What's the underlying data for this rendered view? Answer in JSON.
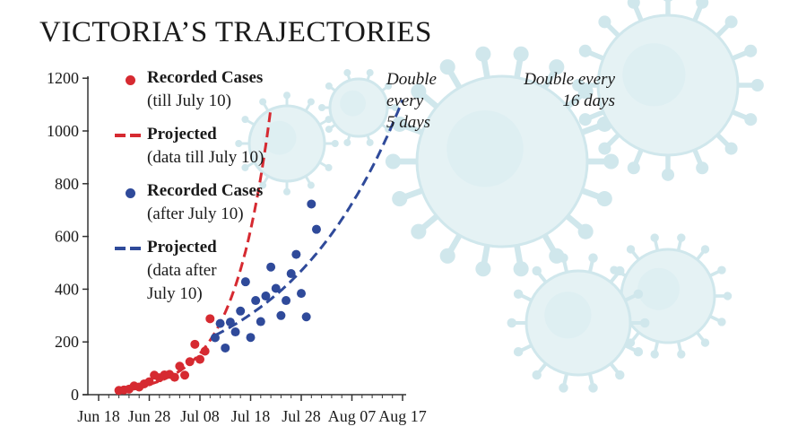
{
  "chart_data": {
    "type": "scatter",
    "title": "VICTORIA’S TRAJECTORIES",
    "xlabel": "",
    "ylabel": "",
    "ylim": [
      0,
      1250
    ],
    "xlim": [
      -1,
      60
    ],
    "x_ticks": [
      {
        "day": 0,
        "label": "Jun 18"
      },
      {
        "day": 10,
        "label": "Jun 28"
      },
      {
        "day": 20,
        "label": "Jul 08"
      },
      {
        "day": 30,
        "label": "Jul 18"
      },
      {
        "day": 40,
        "label": "Jul 28"
      },
      {
        "day": 50,
        "label": "Aug 07"
      },
      {
        "day": 60,
        "label": "Aug 17"
      }
    ],
    "y_ticks": [
      {
        "value": 0,
        "label": "0"
      },
      {
        "value": 200,
        "label": "200"
      },
      {
        "value": 400,
        "label": "400"
      },
      {
        "value": 600,
        "label": "600"
      },
      {
        "value": 800,
        "label": "800"
      },
      {
        "value": 1000,
        "label": "1000"
      },
      {
        "value": 1200,
        "label": "1200"
      }
    ],
    "series": [
      {
        "name": "Recorded Cases (till July 10)",
        "kind": "points",
        "color": "#d62a31",
        "x": [
          4,
          5,
          6,
          7,
          8,
          9,
          10,
          11,
          12,
          13,
          14,
          15,
          16,
          17,
          18,
          19,
          20,
          21,
          22
        ],
        "y": [
          16,
          18,
          21,
          33,
          29,
          41,
          49,
          74,
          64,
          75,
          77,
          66,
          108,
          74,
          125,
          191,
          134,
          165,
          288
        ]
      },
      {
        "name": "Projected (data till July 10)",
        "kind": "dashed-curve",
        "color": "#d62a31",
        "start_day": 4,
        "end_day": 34,
        "start_value": 17,
        "doubling_days": 5
      },
      {
        "name": "Recorded Cases (after July 10)",
        "kind": "points",
        "color": "#2f4a9a",
        "x": [
          23,
          24,
          25,
          26,
          27,
          28,
          29,
          30,
          31,
          32,
          33,
          34,
          35,
          36,
          37,
          38,
          39,
          40,
          41,
          42,
          43
        ],
        "y": [
          216,
          270,
          177,
          275,
          238,
          317,
          428,
          217,
          357,
          277,
          374,
          484,
          403,
          300,
          357,
          459,
          532,
          384,
          295,
          723,
          627
        ]
      },
      {
        "name": "Projected (data after July 10)",
        "kind": "dashed-curve",
        "color": "#2f4a9a",
        "start_day": 23,
        "end_day": 60,
        "start_value": 225,
        "doubling_days": 16
      }
    ],
    "annotations": [
      {
        "text": "Double\nevery\n5 days",
        "near_series": "Projected (data till July 10)"
      },
      {
        "text": "Double every\n16 days",
        "near_series": "Projected (data after July 10)"
      }
    ]
  },
  "legend": [
    {
      "label": "Recorded Cases",
      "note": "(till July 10)",
      "color": "#d62a31",
      "marker": "dot"
    },
    {
      "label": "Projected",
      "note": "(data till July 10)",
      "color": "#d62a31",
      "marker": "dash"
    },
    {
      "label": "Recorded Cases",
      "note": "(after July 10)",
      "color": "#2f4a9a",
      "marker": "dot"
    },
    {
      "label": "Projected",
      "note": "(data after\nJuly 10)",
      "color": "#2f4a9a",
      "marker": "dash"
    }
  ],
  "colors": {
    "red": "#d62a31",
    "blue": "#2f4a9a",
    "axis": "#333333",
    "background_art": "#a9d3dc"
  },
  "background_art": "virus-illustration"
}
